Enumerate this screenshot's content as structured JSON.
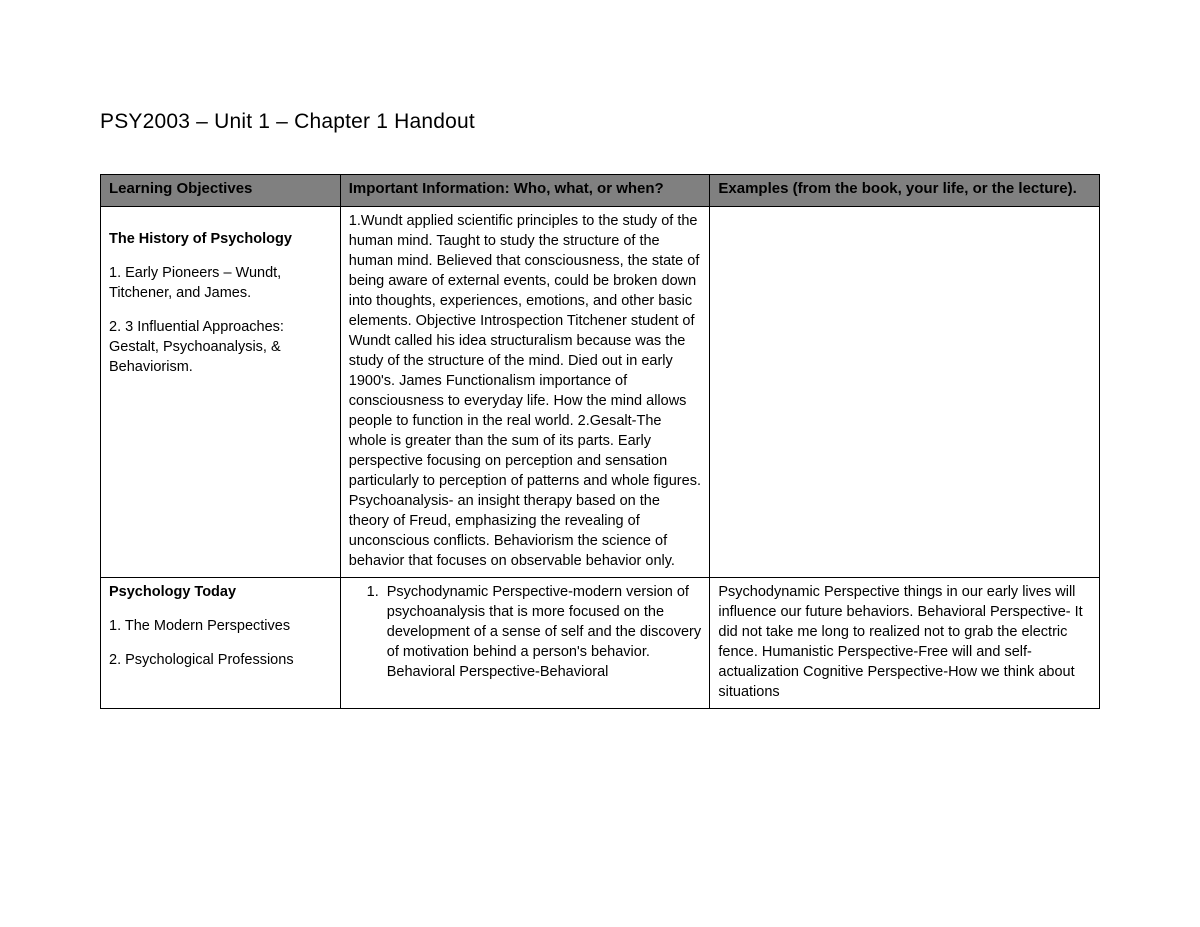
{
  "title": "PSY2003 – Unit 1 – Chapter 1 Handout",
  "headers": {
    "col1": "Learning Objectives",
    "col2": "Important Information: Who, what, or when?",
    "col3": "Examples (from the book, your life, or the lecture)."
  },
  "row1": {
    "obj_heading": "The History of Psychology",
    "obj_item1": "1. Early Pioneers – Wundt, Titchener, and James.",
    "obj_item2": "2. 3 Influential Approaches: Gestalt, Psychoanalysis, & Behaviorism.",
    "info": "1.Wundt applied scientific principles to the study of the human mind. Taught to study the structure of the human mind. Believed that consciousness, the state of being aware of external events, could be broken down into thoughts, experiences, emotions, and other basic elements. Objective Introspection Titchener student of Wundt called his idea structuralism because was the study of the structure of the mind. Died out in early 1900's. James Functionalism importance of consciousness to everyday life. How the mind allows people to function in the real world. 2.Gesalt-The whole is greater than the sum of its parts. Early perspective focusing on perception and sensation particularly to perception of patterns and whole figures. Psychoanalysis- an insight therapy based on the theory of Freud, emphasizing the revealing of unconscious conflicts. Behaviorism the science of behavior that focuses on observable behavior only.",
    "examples": ""
  },
  "row2": {
    "obj_heading": "Psychology Today",
    "obj_item1": "1. The Modern Perspectives",
    "obj_item2": "2. Psychological Professions",
    "info_item1": "Psychodynamic Perspective-modern version of psychoanalysis that is more focused on the development of a sense of self and the discovery of motivation behind a person's behavior. Behavioral Perspective-Behavioral",
    "examples": "Psychodynamic Perspective things in our early lives will influence our future behaviors. Behavioral Perspective- It did not take me long to realized not to grab the electric fence. Humanistic Perspective-Free will and self-actualization Cognitive Perspective-How we think about situations"
  }
}
